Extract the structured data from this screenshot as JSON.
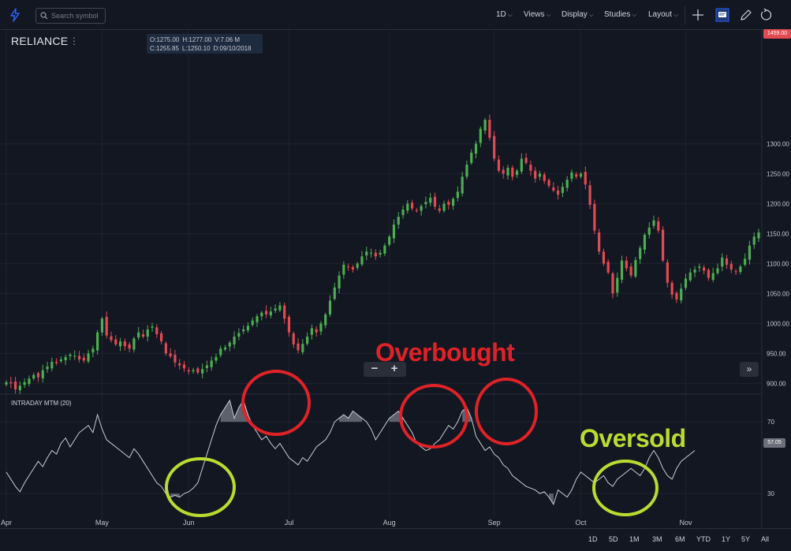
{
  "toolbar": {
    "search_placeholder": "Search symbol",
    "interval": "1D",
    "views": "Views",
    "display": "Display",
    "studies": "Studies",
    "layout": "Layout"
  },
  "symbol": {
    "name": "RELIANCE",
    "menu": "⋮"
  },
  "ohlc": {
    "o": "O:1275.00",
    "h": "H:1277.00",
    "v": "V:7.06 M",
    "c": "C:1255.85",
    "l": "L:1250.10",
    "d": "D:09/10/2018"
  },
  "indicator": {
    "label": "INTRADAY MTM (20)"
  },
  "badges": {
    "last_price": "1459.00",
    "mtm_value": "57.05"
  },
  "controls": {
    "zoom_out": "−",
    "zoom_in": "+",
    "scroll_right": "»"
  },
  "annotations": {
    "overbought": "Overbought",
    "oversold": "Oversold"
  },
  "ranges": [
    "1D",
    "5D",
    "1M",
    "3M",
    "6M",
    "YTD",
    "1Y",
    "5Y",
    "All"
  ],
  "colors": {
    "up": "#4caf50",
    "down": "#e44a52",
    "overbought": "#e02227",
    "oversold": "#b8dc30",
    "background": "#131722"
  },
  "chart_data": [
    {
      "type": "candlestick",
      "title": "RELIANCE",
      "price_ticks": [
        "1300.00",
        "1250.00",
        "1200.00",
        "1150.00",
        "1100.00",
        "1050.00",
        "1000.00",
        "950.00",
        "900.00"
      ],
      "price_tick_values": [
        1300,
        1250,
        1200,
        1150,
        1100,
        1050,
        1000,
        950,
        900
      ],
      "ylim": [
        882,
        1490
      ],
      "month_ticks": [
        "Apr",
        "May",
        "Jun",
        "Jul",
        "Aug",
        "Sep",
        "Oct",
        "Nov"
      ],
      "month_start_index": [
        0,
        21,
        40,
        62,
        84,
        107,
        126,
        149
      ],
      "close": [
        902,
        900,
        890,
        896,
        902,
        908,
        914,
        910,
        922,
        928,
        936,
        934,
        940,
        944,
        948,
        946,
        940,
        938,
        950,
        958,
        985,
        1008,
        980,
        972,
        965,
        970,
        962,
        958,
        975,
        985,
        978,
        990,
        995,
        982,
        970,
        950,
        945,
        935,
        930,
        925,
        920,
        922,
        918,
        924,
        930,
        938,
        944,
        958,
        960,
        968,
        978,
        984,
        990,
        996,
        1005,
        1012,
        1018,
        1015,
        1020,
        1025,
        1030,
        1008,
        985,
        965,
        955,
        966,
        978,
        992,
        985,
        1000,
        1015,
        1038,
        1060,
        1080,
        1098,
        1094,
        1090,
        1100,
        1112,
        1120,
        1118,
        1112,
        1118,
        1130,
        1145,
        1165,
        1178,
        1190,
        1200,
        1192,
        1188,
        1196,
        1203,
        1210,
        1195,
        1188,
        1200,
        1198,
        1208,
        1220,
        1245,
        1265,
        1285,
        1300,
        1325,
        1340,
        1310,
        1275,
        1255,
        1250,
        1260,
        1245,
        1255,
        1275,
        1268,
        1255,
        1242,
        1250,
        1238,
        1230,
        1222,
        1215,
        1228,
        1240,
        1252,
        1245,
        1250,
        1232,
        1198,
        1155,
        1120,
        1100,
        1085,
        1050,
        1076,
        1105,
        1092,
        1080,
        1106,
        1126,
        1148,
        1160,
        1172,
        1155,
        1105,
        1068,
        1048,
        1040,
        1058,
        1075,
        1085,
        1090,
        1095,
        1088,
        1076,
        1084,
        1092,
        1110,
        1098,
        1090,
        1086,
        1095,
        1108,
        1130,
        1145,
        1152
      ]
    },
    {
      "type": "line",
      "title": "INTRADAY MTM (20)",
      "y_ticks": [
        "70",
        "30"
      ],
      "y_tick_values": [
        70,
        30
      ],
      "ylim": [
        16,
        85
      ],
      "overbought_level": 70,
      "oversold_level": 30,
      "x_ticks": [
        "Apr",
        "May",
        "Jun",
        "Jul",
        "Aug",
        "Sep",
        "Oct",
        "Nov"
      ],
      "values": [
        42,
        38,
        34,
        31,
        36,
        40,
        44,
        48,
        45,
        50,
        54,
        52,
        58,
        61,
        56,
        60,
        64,
        66,
        68,
        64,
        74,
        66,
        60,
        58,
        56,
        54,
        52,
        50,
        55,
        52,
        48,
        44,
        40,
        36,
        34,
        30,
        28,
        29,
        28,
        30,
        31,
        33,
        36,
        44,
        52,
        60,
        68,
        74,
        78,
        82,
        72,
        78,
        82,
        74,
        68,
        64,
        60,
        62,
        58,
        55,
        58,
        54,
        50,
        48,
        46,
        50,
        48,
        52,
        56,
        58,
        60,
        64,
        70,
        72,
        74,
        72,
        76,
        74,
        72,
        70,
        66,
        60,
        64,
        68,
        72,
        74,
        76,
        72,
        68,
        64,
        58,
        56,
        54,
        55,
        58,
        60,
        64,
        68,
        66,
        70,
        76,
        78,
        72,
        62,
        58,
        54,
        56,
        52,
        50,
        46,
        44,
        40,
        38,
        36,
        34,
        33,
        32,
        30,
        31,
        28,
        24,
        32,
        30,
        28,
        32,
        38,
        42,
        40,
        38,
        36,
        38,
        40,
        36,
        34,
        38,
        40,
        42,
        44,
        42,
        40,
        44,
        50,
        54,
        50,
        44,
        40,
        38,
        44,
        48,
        50,
        52,
        54
      ]
    }
  ]
}
